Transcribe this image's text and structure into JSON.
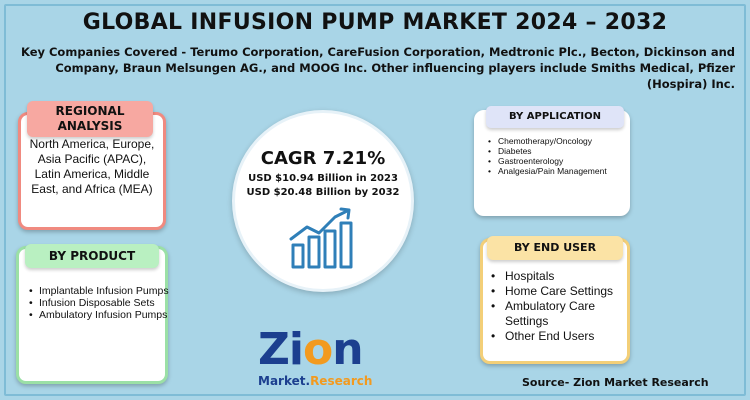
{
  "title": "GLOBAL INFUSION PUMP MARKET 2024 – 2032",
  "companies": "Key Companies Covered - Terumo Corporation, CareFusion Corporation, Medtronic Plc., Becton, Dickinson and Company, Braun Melsungen AG., and MOOG Inc. Other influencing players include Smiths Medical, Pfizer (Hospira) Inc.",
  "regional": {
    "title": "REGIONAL ANALYSIS",
    "body": "North America, Europe, Asia Pacific (APAC), Latin America, Middle East, and Africa (MEA)"
  },
  "product": {
    "title": "BY PRODUCT",
    "items": [
      "Implantable Infusion Pumps",
      "Infusion Disposable Sets",
      "Ambulatory Infusion Pumps"
    ]
  },
  "center": {
    "cagr": "CAGR 7.21%",
    "line1": "USD $10.94 Billion  in 2023",
    "line2": "USD $20.48 Billion  by 2032",
    "icon": "growth-chart-icon"
  },
  "application": {
    "title": "BY APPLICATION",
    "items": [
      "Chemotherapy/Oncology",
      "Diabetes",
      "Gastroenterology",
      "Analgesia/Pain Management"
    ]
  },
  "enduser": {
    "title": "BY END USER",
    "items": [
      "Hospitals",
      "Home Care Settings",
      "Ambulatory Care Settings",
      "Other End Users"
    ]
  },
  "logo": {
    "word_a": "Zi",
    "word_b": "o",
    "word_c": "n",
    "sub_a": "Market.",
    "sub_b": "Research"
  },
  "source": "Source- Zion Market Research",
  "colors": {
    "background": "#a9d5e7",
    "regional_accent": "#f08a80",
    "product_accent": "#9be0a6",
    "application_accent": "#dfe4f8",
    "enduser_accent": "#f3cf78",
    "logo_blue": "#1c3f8f",
    "logo_orange": "#f29a1f"
  }
}
